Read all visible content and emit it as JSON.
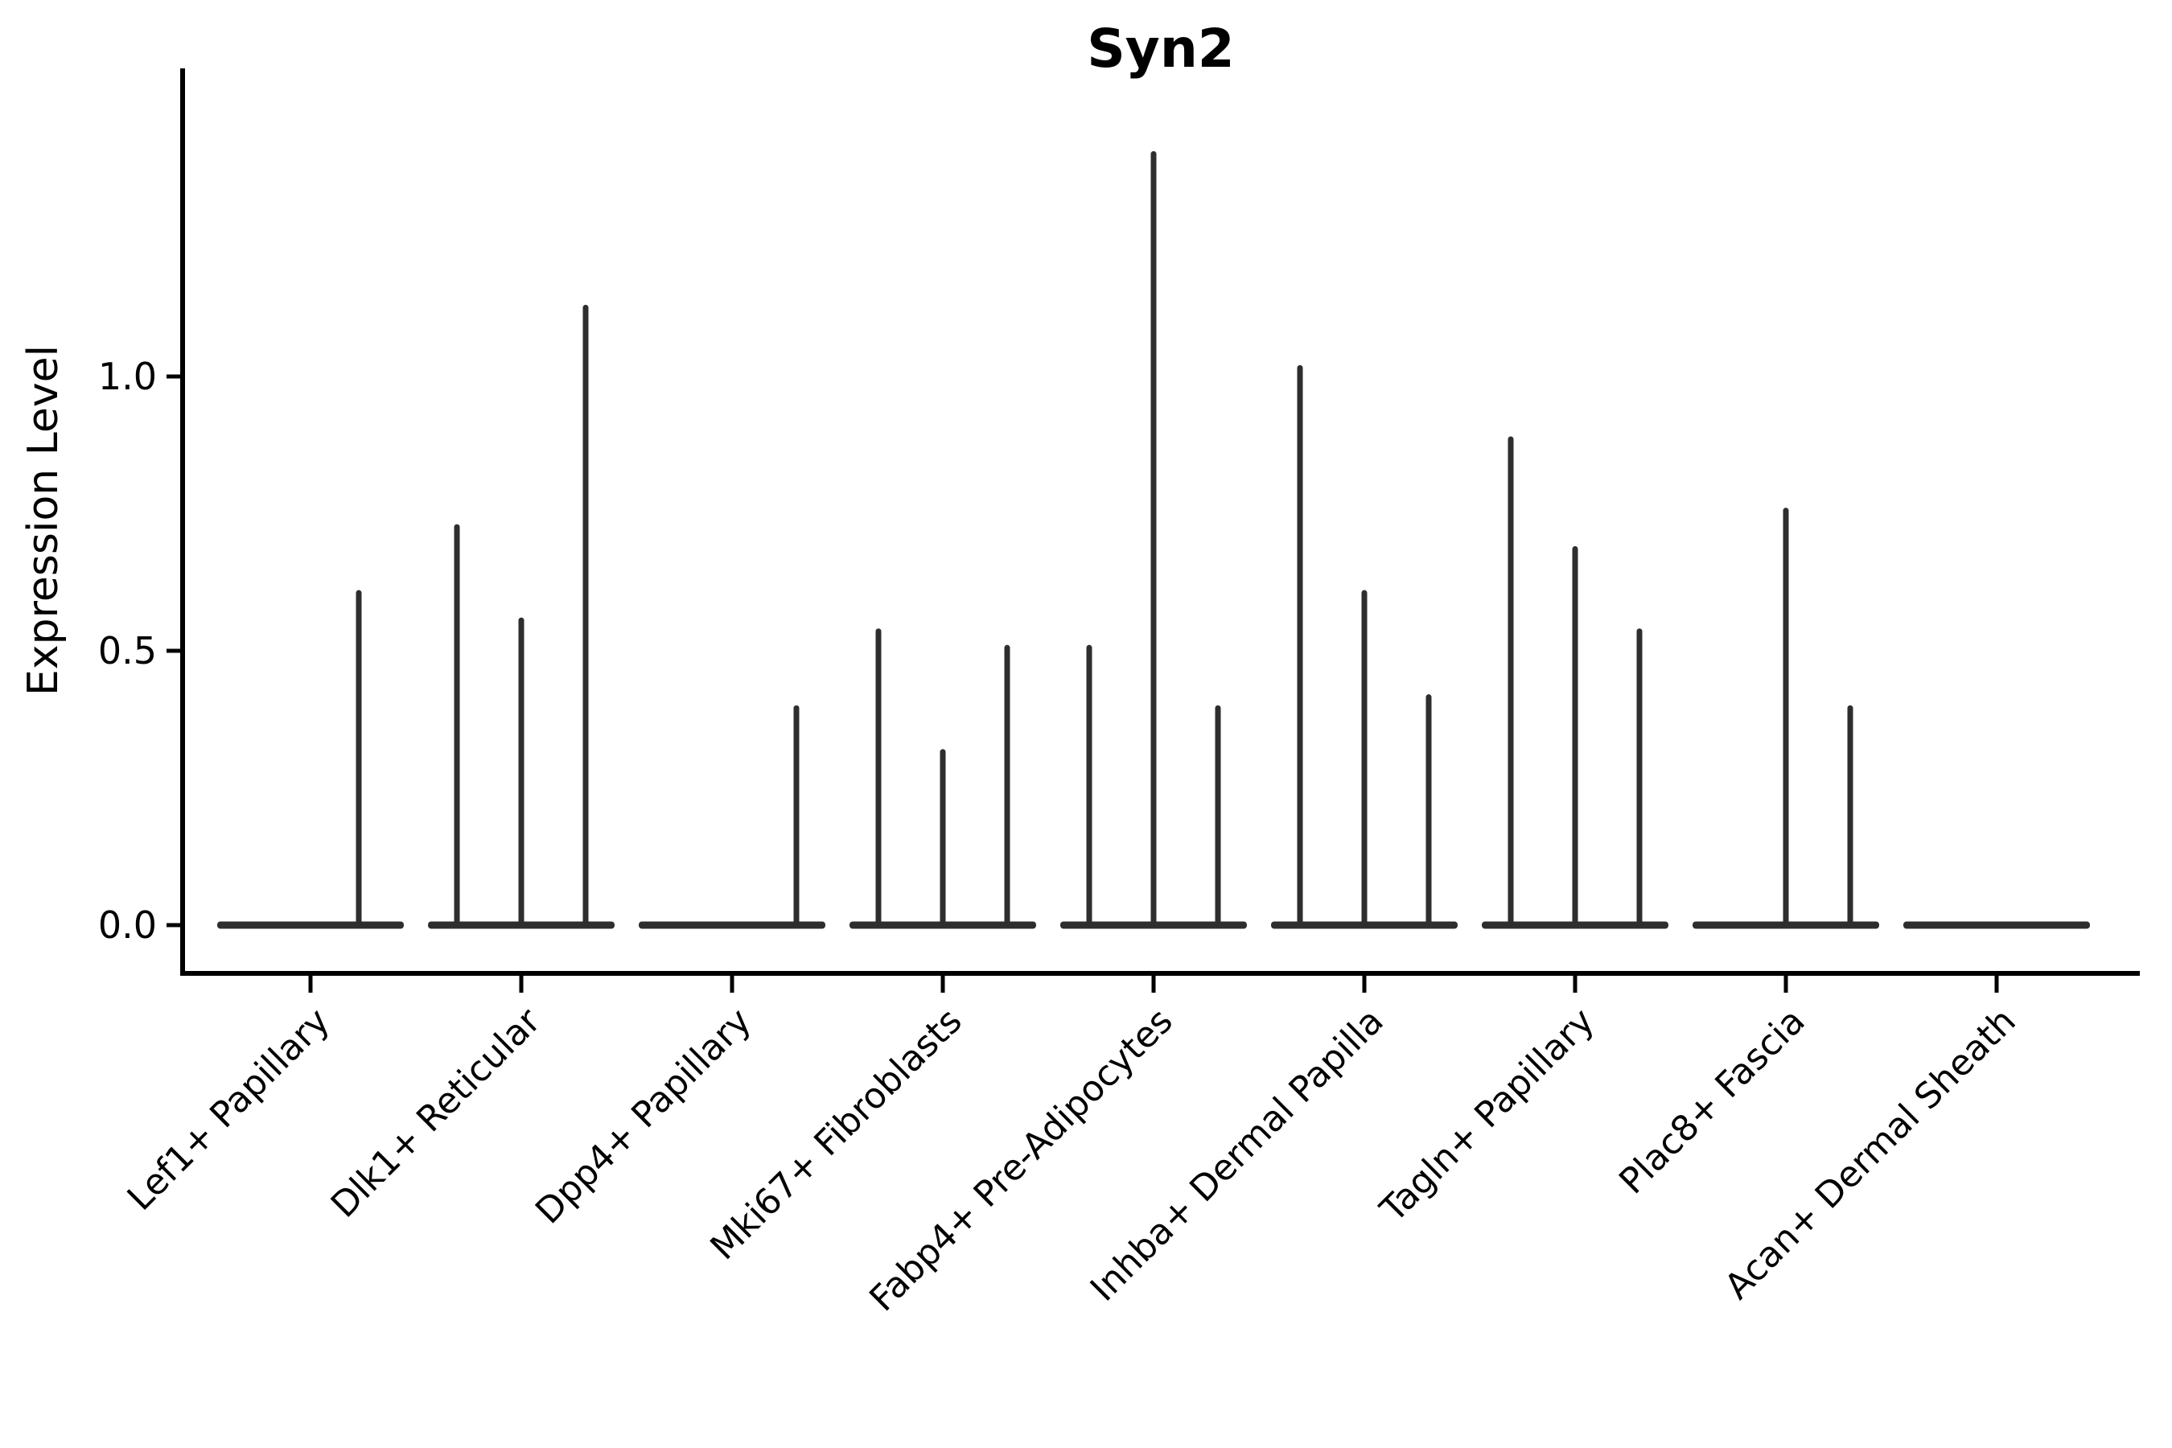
{
  "chart_data": {
    "type": "violin",
    "title": "Syn2",
    "ylabel": "Expression Level",
    "xlabel": "",
    "yticks": [
      0.0,
      0.5,
      1.0
    ],
    "ytick_labels": [
      "0.0",
      "0.5",
      "1.0"
    ],
    "ylim": [
      -0.09,
      1.56
    ],
    "grid": false,
    "legend": false,
    "categories": [
      "Lef1+ Papillary",
      "Dlk1+ Reticular",
      "Dpp4+ Papillary",
      "Mki67+ Fibroblasts",
      "Fabp4+ Pre-Adipocytes",
      "Inhba+ Dermal Papilla",
      "Tagln+ Papillary",
      "Plac8+ Fascia",
      "Acan+ Dermal Sheath"
    ],
    "groups": [
      {
        "category": "Lef1+ Papillary",
        "violin_maxima": [
          0,
          0.61
        ]
      },
      {
        "category": "Dlk1+ Reticular",
        "violin_maxima": [
          0.73,
          0.56,
          1.13
        ]
      },
      {
        "category": "Dpp4+ Papillary",
        "violin_maxima": [
          0,
          0,
          0.4
        ]
      },
      {
        "category": "Mki67+ Fibroblasts",
        "violin_maxima": [
          0.54,
          0.32,
          0.51
        ]
      },
      {
        "category": "Fabp4+ Pre-Adipocytes",
        "violin_maxima": [
          0.51,
          1.41,
          0.4
        ]
      },
      {
        "category": "Inhba+ Dermal Papilla",
        "violin_maxima": [
          1.02,
          0.61,
          0.42
        ]
      },
      {
        "category": "Tagln+ Papillary",
        "violin_maxima": [
          0.89,
          0.69,
          0.54
        ]
      },
      {
        "category": "Plac8+ Fascia",
        "violin_maxima": [
          0,
          0.76,
          0.4
        ]
      },
      {
        "category": "Acan+ Dermal Sheath",
        "violin_maxima": [
          0,
          0,
          0
        ]
      }
    ],
    "style": {
      "violin_color": "#2e2e2e",
      "axis_color": "#000000",
      "text_color": "#000000",
      "background": "#ffffff"
    }
  }
}
